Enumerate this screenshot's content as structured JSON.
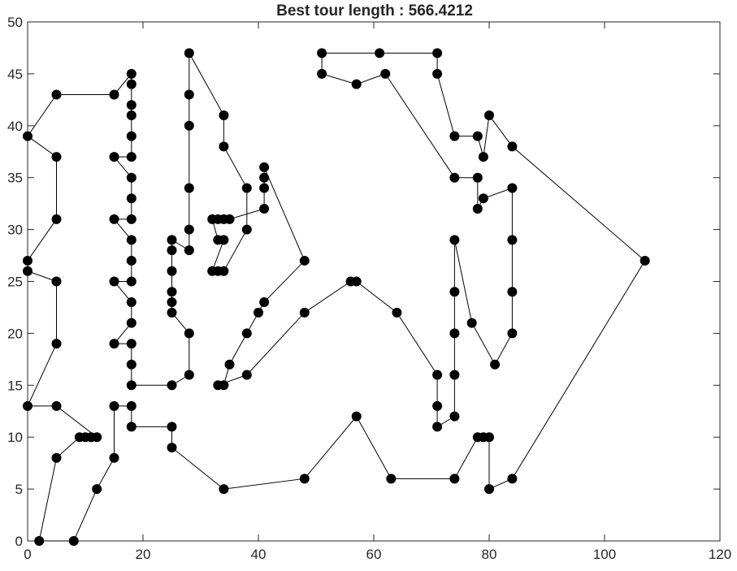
{
  "chart_data": {
    "type": "line",
    "title": "Best tour length : 566.4212",
    "xlabel": "",
    "ylabel": "",
    "xlim": [
      0,
      120
    ],
    "ylim": [
      0,
      50
    ],
    "xticks": [
      0,
      20,
      40,
      60,
      80,
      100,
      120
    ],
    "yticks": [
      0,
      5,
      10,
      15,
      20,
      25,
      30,
      35,
      40,
      45,
      50
    ],
    "grid": false,
    "marker": "filled-circle",
    "line_color": "#000000",
    "marker_color": "#000000",
    "series": [
      {
        "closed": true,
        "points": [
          [
            2,
            0
          ],
          [
            5,
            8
          ],
          [
            9,
            10
          ],
          [
            10,
            10
          ],
          [
            11,
            10
          ],
          [
            12,
            10
          ],
          [
            5,
            13
          ],
          [
            0,
            13
          ],
          [
            5,
            19
          ],
          [
            5,
            25
          ],
          [
            0,
            26
          ],
          [
            0,
            27
          ],
          [
            5,
            31
          ],
          [
            5,
            37
          ],
          [
            0,
            39
          ],
          [
            5,
            43
          ],
          [
            15,
            43
          ],
          [
            18,
            45
          ],
          [
            18,
            44
          ],
          [
            18,
            42
          ],
          [
            18,
            41
          ],
          [
            18,
            39
          ],
          [
            18,
            37
          ],
          [
            15,
            37
          ],
          [
            18,
            35
          ],
          [
            18,
            33
          ],
          [
            18,
            31
          ],
          [
            15,
            31
          ],
          [
            18,
            29
          ],
          [
            18,
            27
          ],
          [
            18,
            25
          ],
          [
            15,
            25
          ],
          [
            18,
            23
          ],
          [
            18,
            21
          ],
          [
            15,
            19
          ],
          [
            18,
            19
          ],
          [
            18,
            17
          ],
          [
            18,
            15
          ],
          [
            25,
            15
          ],
          [
            28,
            16
          ],
          [
            28,
            20
          ],
          [
            25,
            22
          ],
          [
            25,
            23
          ],
          [
            25,
            24
          ],
          [
            25,
            26
          ],
          [
            25,
            28
          ],
          [
            25,
            29
          ],
          [
            28,
            28
          ],
          [
            28,
            30
          ],
          [
            28,
            34
          ],
          [
            28,
            40
          ],
          [
            28,
            43
          ],
          [
            28,
            47
          ],
          [
            34,
            41
          ],
          [
            34,
            38
          ],
          [
            38,
            34
          ],
          [
            38,
            30
          ],
          [
            34,
            26
          ],
          [
            33,
            26
          ],
          [
            32,
            26
          ],
          [
            34,
            29
          ],
          [
            33,
            29
          ],
          [
            32,
            31
          ],
          [
            33,
            31
          ],
          [
            34,
            31
          ],
          [
            35,
            31
          ],
          [
            41,
            32
          ],
          [
            41,
            34
          ],
          [
            41,
            35
          ],
          [
            41,
            36
          ],
          [
            48,
            27
          ],
          [
            41,
            23
          ],
          [
            40,
            22
          ],
          [
            38,
            20
          ],
          [
            35,
            17
          ],
          [
            34,
            15
          ],
          [
            33,
            15
          ],
          [
            38,
            16
          ],
          [
            48,
            22
          ],
          [
            56,
            25
          ],
          [
            57,
            25
          ],
          [
            64,
            22
          ],
          [
            71,
            16
          ],
          [
            71,
            13
          ],
          [
            71,
            11
          ],
          [
            74,
            12
          ],
          [
            74,
            16
          ],
          [
            74,
            20
          ],
          [
            74,
            24
          ],
          [
            74,
            29
          ],
          [
            77,
            21
          ],
          [
            81,
            17
          ],
          [
            84,
            20
          ],
          [
            84,
            24
          ],
          [
            84,
            29
          ],
          [
            84,
            34
          ],
          [
            79,
            33
          ],
          [
            78,
            32
          ],
          [
            78,
            35
          ],
          [
            74,
            35
          ],
          [
            62,
            45
          ],
          [
            57,
            44
          ],
          [
            51,
            45
          ],
          [
            51,
            47
          ],
          [
            61,
            47
          ],
          [
            71,
            47
          ],
          [
            71,
            45
          ],
          [
            74,
            39
          ],
          [
            78,
            39
          ],
          [
            79,
            37
          ],
          [
            80,
            41
          ],
          [
            84,
            38
          ],
          [
            107,
            27
          ],
          [
            84,
            6
          ],
          [
            80,
            5
          ],
          [
            80,
            10
          ],
          [
            79,
            10
          ],
          [
            78,
            10
          ],
          [
            74,
            6
          ],
          [
            63,
            6
          ],
          [
            57,
            12
          ],
          [
            48,
            6
          ],
          [
            34,
            5
          ],
          [
            25,
            9
          ],
          [
            25,
            11
          ],
          [
            18,
            11
          ],
          [
            18,
            13
          ],
          [
            15,
            13
          ],
          [
            15,
            8
          ],
          [
            12,
            5
          ],
          [
            8,
            0
          ]
        ]
      }
    ]
  }
}
